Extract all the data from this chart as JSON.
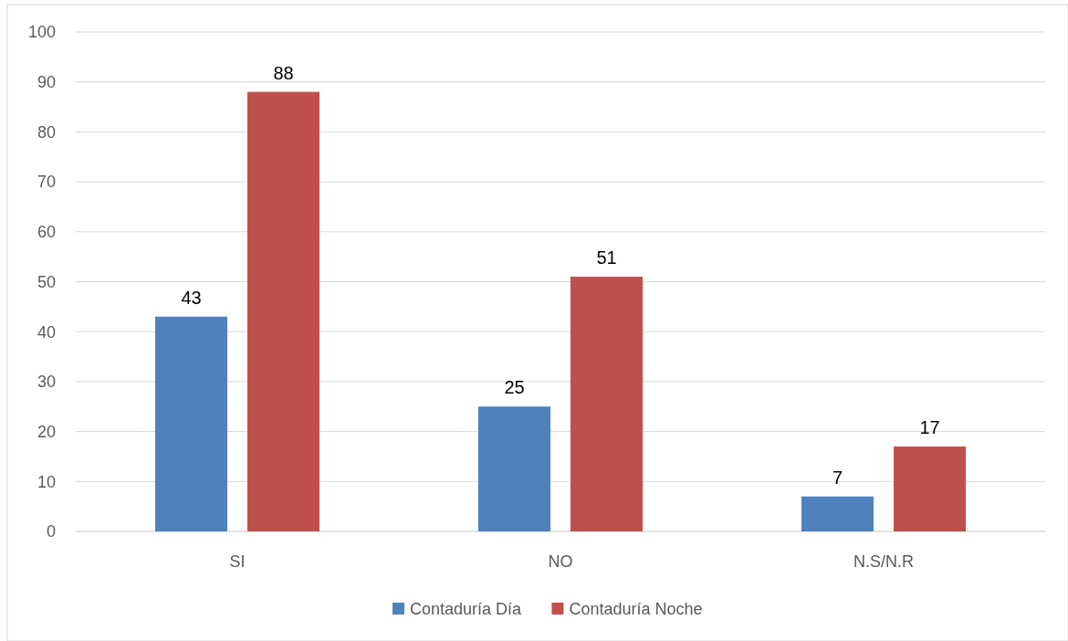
{
  "chart_data": {
    "type": "bar",
    "categories": [
      "SI",
      "NO",
      "N.S/N.R"
    ],
    "series": [
      {
        "name": "Contaduría Día",
        "color": "#4f81bd",
        "values": [
          43,
          25,
          7
        ]
      },
      {
        "name": "Contaduría Noche",
        "color": "#c0504d",
        "values": [
          88,
          51,
          17
        ]
      }
    ],
    "ylim": [
      0,
      100
    ],
    "yticks": [
      0,
      10,
      20,
      30,
      40,
      50,
      60,
      70,
      80,
      90,
      100
    ],
    "grid": "y",
    "legend": "bottom",
    "data_labels": true
  }
}
